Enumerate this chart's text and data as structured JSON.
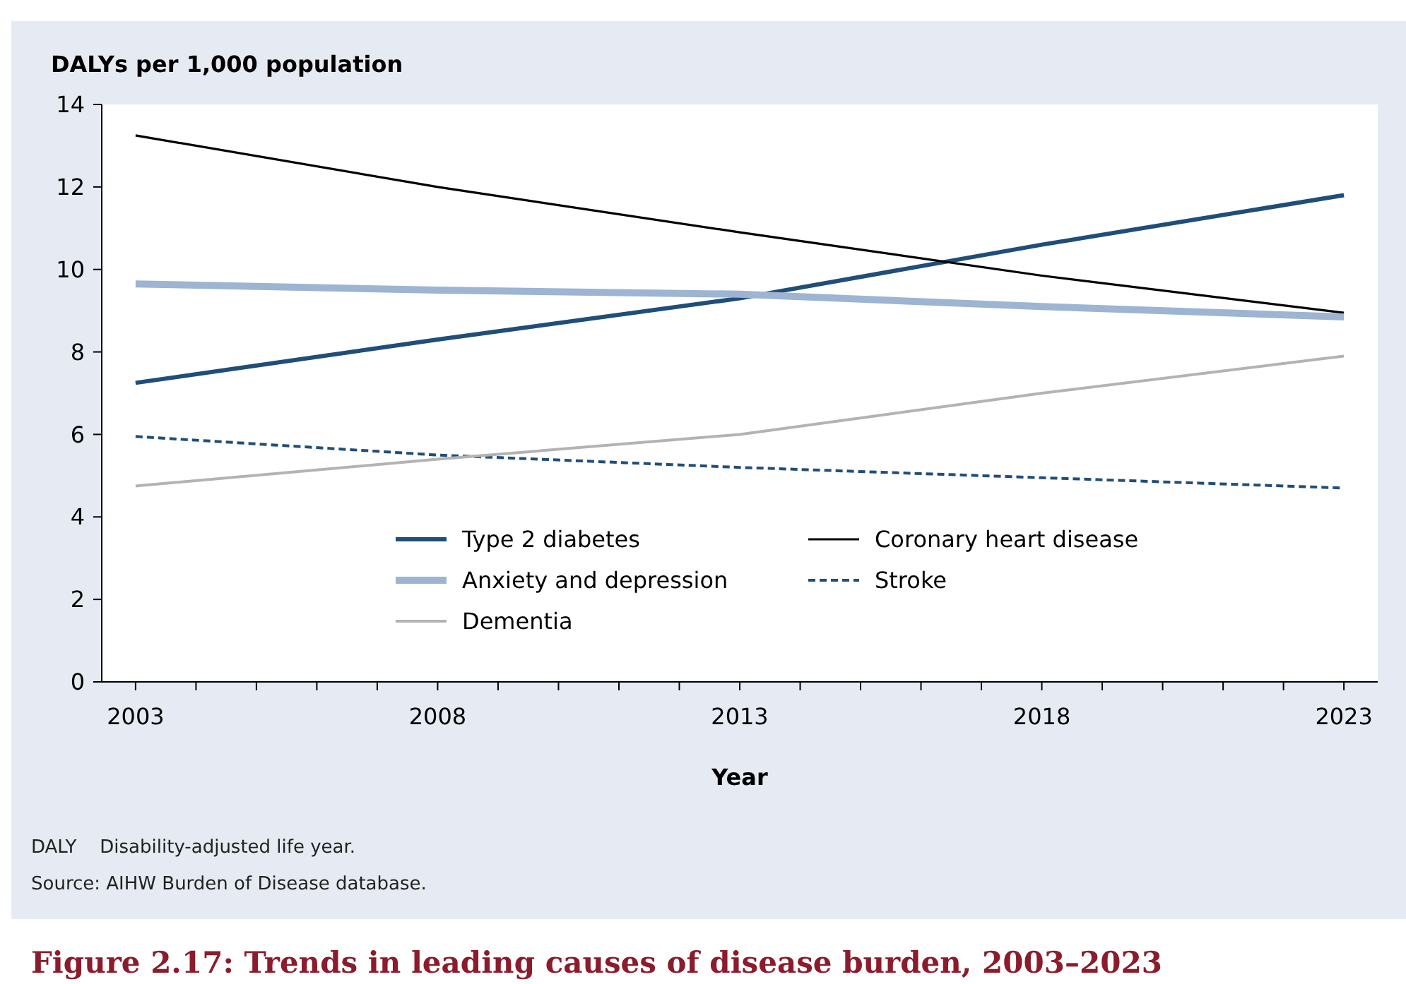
{
  "chart_data": {
    "type": "line",
    "title": "Figure 2.17: Trends in leading causes of disease burden, 2003–2023",
    "xlabel": "Year",
    "ylabel": "DALYs per 1,000 population",
    "x": [
      2003,
      2008,
      2013,
      2018,
      2023
    ],
    "series": [
      {
        "name": "Type 2 diabetes",
        "color": "#1f4e79",
        "values": [
          7.25,
          8.3,
          9.3,
          10.6,
          11.8
        ]
      },
      {
        "name": "Coronary heart disease",
        "color": "#000000",
        "values": [
          13.25,
          12.0,
          10.9,
          9.85,
          8.95
        ]
      },
      {
        "name": "Anxiety and depression",
        "color": "#9db4d2",
        "values": [
          9.65,
          9.5,
          9.4,
          9.1,
          8.85
        ]
      },
      {
        "name": "Stroke",
        "color": "#1f4e79",
        "line_style": "dashed",
        "values": [
          5.95,
          5.5,
          5.2,
          4.95,
          4.7
        ]
      },
      {
        "name": "Dementia",
        "color": "#b3b3b3",
        "values": [
          4.75,
          5.4,
          6.0,
          7.0,
          7.9
        ]
      }
    ],
    "xlim": [
      2002.44,
      2023.56
    ],
    "xticks": [
      2003,
      {
        "value": 2004,
        "label": null
      },
      {
        "value": 2005,
        "label": null
      },
      {
        "value": 2006,
        "label": null
      },
      {
        "value": 2007,
        "label": null
      },
      2008,
      {
        "value": 2009,
        "label": null
      },
      {
        "value": 2010,
        "label": null
      },
      {
        "value": 2011,
        "label": null
      },
      {
        "value": 2012,
        "label": null
      },
      2013,
      {
        "value": 2014,
        "label": null
      },
      {
        "value": 2015,
        "label": null
      },
      {
        "value": 2016,
        "label": null
      },
      {
        "value": 2017,
        "label": null
      },
      2018,
      {
        "value": 2019,
        "label": null
      },
      {
        "value": 2020,
        "label": null
      },
      {
        "value": 2021,
        "label": null
      },
      {
        "value": 2022,
        "label": null
      },
      2023
    ],
    "ylim": [
      0,
      14
    ],
    "yticks": [
      0,
      2,
      4,
      6,
      8,
      10,
      12,
      14
    ],
    "grid": false,
    "legend": "bottom",
    "marker": "none",
    "line_style": "solid",
    "annotations": [
      "DALY    Disability-adjusted life year.",
      "Source: AIHW Burden of Disease database."
    ]
  }
}
